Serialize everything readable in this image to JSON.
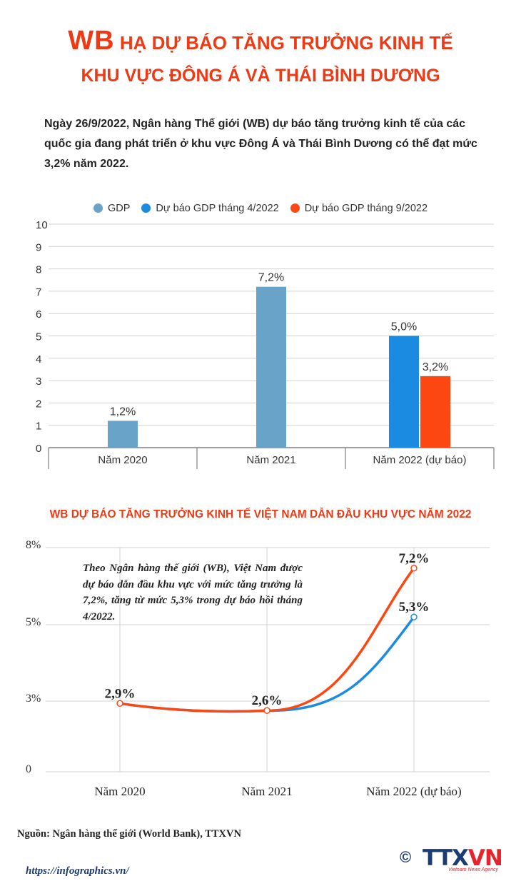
{
  "header": {
    "title_wb": "WB",
    "title_rest": " HẠ DỰ BÁO TĂNG TRƯỞNG KINH TẾ",
    "title_line2": "KHU VỰC ĐÔNG Á VÀ THÁI BÌNH DƯƠNG"
  },
  "intro": "Ngày 26/9/2022, Ngân hàng Thế giới (WB) dự báo tăng trưởng kinh tế của các quốc gia đang phát triển ở khu vực Đông Á và Thái Bình Dương có thể đạt mức 3,2% năm 2022.",
  "colors": {
    "gdp": "#6aa3c8",
    "forecast_apr": "#1a8be0",
    "forecast_sep": "#fc4713",
    "title": "#ee3a14",
    "grid": "#d0d0d0"
  },
  "chart_data": [
    {
      "type": "bar",
      "categories": [
        "Năm 2020",
        "Năm 2021",
        "Năm 2022 (dự báo)"
      ],
      "series": [
        {
          "name": "GDP",
          "values": [
            1.2,
            7.2,
            null
          ],
          "labels": [
            "1,2%",
            "7,2%",
            ""
          ]
        },
        {
          "name": "Dự báo GDP tháng 4/2022",
          "values": [
            null,
            null,
            5.0
          ],
          "labels": [
            "",
            "",
            "5,0%"
          ]
        },
        {
          "name": "Dự báo GDP tháng 9/2022",
          "values": [
            null,
            null,
            3.2
          ],
          "labels": [
            "",
            "",
            "3,2%"
          ]
        }
      ],
      "ylim": [
        0,
        10
      ],
      "yticks": [
        "0",
        "1",
        "2",
        "3",
        "4",
        "5",
        "6",
        "7",
        "8",
        "9",
        "10"
      ],
      "legend": "top-center",
      "grid": true
    },
    {
      "type": "line",
      "title": "WB DỰ BÁO TĂNG TRƯỞNG KINH TẾ VIỆT NAM DẪN ĐẦU KHU VỰC NĂM 2022",
      "categories": [
        "Năm 2020",
        "Năm 2021",
        "Năm 2022 (dự báo)"
      ],
      "series": [
        {
          "values": [
            2.9,
            2.6,
            7.2
          ],
          "labels": [
            "2,9%",
            "2,6%",
            "7,2%"
          ]
        },
        {
          "values": [
            2.9,
            2.6,
            5.3
          ],
          "labels": [
            "",
            "",
            "5,3%"
          ]
        }
      ],
      "yticks": [
        "0",
        "3%",
        "5%",
        "8%"
      ],
      "ylim": [
        0,
        8.5
      ],
      "grid": true,
      "annotation": "Theo Ngân hàng thế giới (WB), Việt Nam được dự báo dẫn đầu khu vực với mức tăng trưởng là 7,2%, tăng từ mức 5,3% trong dự báo hồi tháng 4/2022."
    }
  ],
  "footer": {
    "source": "Nguồn: Ngân hàng thế giới (World Bank), TTXVN",
    "url": "https://infographics.vn/",
    "logo_copy": "©",
    "logo_main": "TTX",
    "logo_accent": "VN",
    "logo_tag": "Vietnam News Agency"
  }
}
